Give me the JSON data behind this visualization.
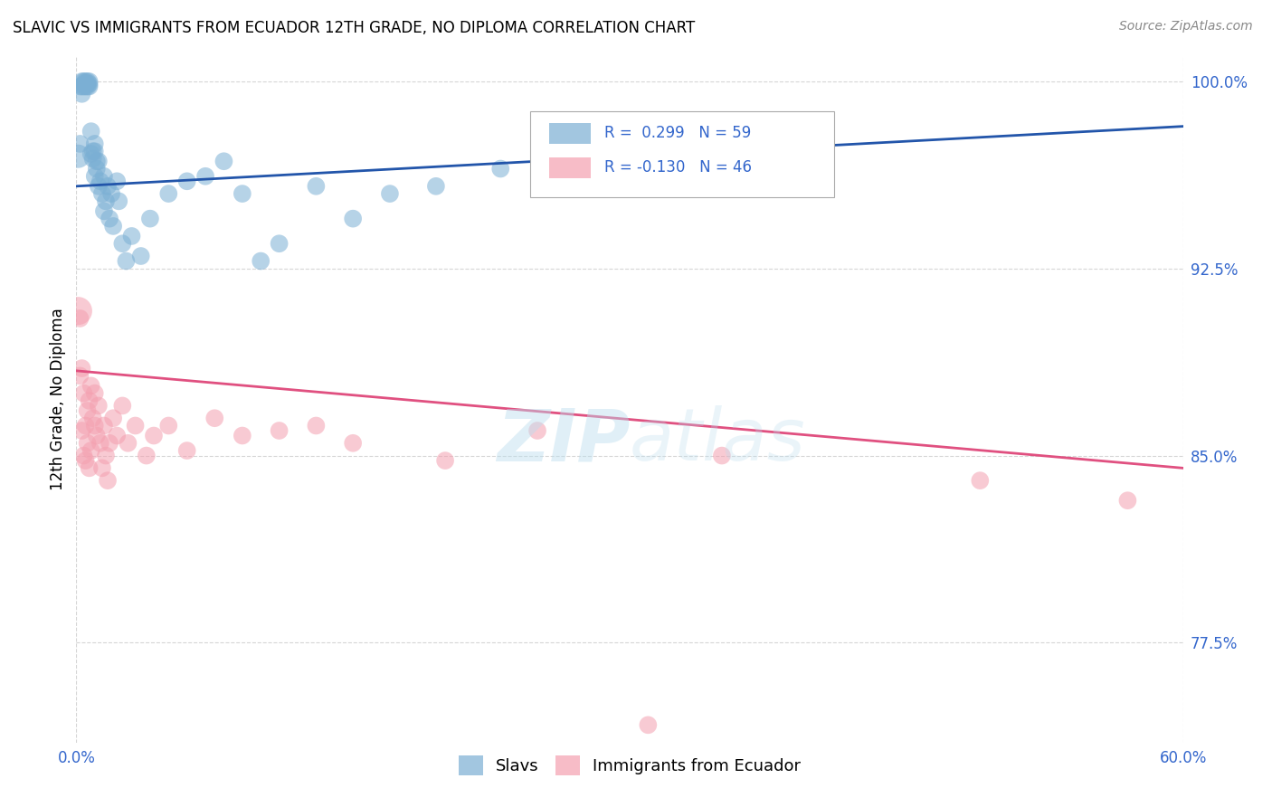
{
  "title": "SLAVIC VS IMMIGRANTS FROM ECUADOR 12TH GRADE, NO DIPLOMA CORRELATION CHART",
  "source": "Source: ZipAtlas.com",
  "ylabel_label": "12th Grade, No Diploma",
  "watermark_zip": "ZIP",
  "watermark_atlas": "atlas",
  "blue_color": "#7BAFD4",
  "pink_color": "#F4A0B0",
  "blue_line_color": "#2255AA",
  "pink_line_color": "#E05080",
  "xlim": [
    0.0,
    0.6
  ],
  "ylim": [
    0.735,
    1.01
  ],
  "yticks": [
    0.775,
    0.85,
    0.925,
    1.0
  ],
  "xticks": [
    0.0,
    0.6
  ],
  "blue_line_x0": 0.0,
  "blue_line_y0": 0.958,
  "blue_line_x1": 0.6,
  "blue_line_y1": 0.982,
  "pink_line_x0": 0.0,
  "pink_line_y0": 0.884,
  "pink_line_x1": 0.6,
  "pink_line_y1": 0.845,
  "slavs_x": [
    0.001,
    0.002,
    0.002,
    0.003,
    0.003,
    0.003,
    0.004,
    0.004,
    0.004,
    0.005,
    0.005,
    0.005,
    0.006,
    0.006,
    0.006,
    0.007,
    0.007,
    0.007,
    0.008,
    0.008,
    0.009,
    0.009,
    0.01,
    0.01,
    0.01,
    0.011,
    0.011,
    0.012,
    0.012,
    0.013,
    0.014,
    0.015,
    0.015,
    0.016,
    0.017,
    0.018,
    0.019,
    0.02,
    0.022,
    0.023,
    0.025,
    0.027,
    0.03,
    0.035,
    0.04,
    0.05,
    0.06,
    0.07,
    0.08,
    0.09,
    0.1,
    0.11,
    0.13,
    0.15,
    0.17,
    0.195,
    0.23,
    0.27,
    0.31
  ],
  "slavs_y": [
    0.97,
    0.975,
    0.998,
    0.995,
    0.998,
    1.0,
    0.998,
    0.999,
    1.0,
    0.998,
    0.999,
    1.0,
    0.998,
    0.999,
    1.0,
    0.998,
    0.999,
    1.0,
    0.971,
    0.98,
    0.969,
    0.972,
    0.962,
    0.972,
    0.975,
    0.965,
    0.968,
    0.958,
    0.968,
    0.96,
    0.955,
    0.948,
    0.962,
    0.952,
    0.958,
    0.945,
    0.955,
    0.942,
    0.96,
    0.952,
    0.935,
    0.928,
    0.938,
    0.93,
    0.945,
    0.955,
    0.96,
    0.962,
    0.968,
    0.955,
    0.928,
    0.935,
    0.958,
    0.945,
    0.955,
    0.958,
    0.965,
    0.97,
    0.975
  ],
  "slavs_sizes": [
    350,
    200,
    200,
    200,
    200,
    200,
    200,
    200,
    200,
    200,
    200,
    200,
    200,
    200,
    200,
    200,
    200,
    200,
    200,
    200,
    200,
    200,
    200,
    200,
    200,
    200,
    200,
    200,
    200,
    200,
    200,
    200,
    200,
    200,
    200,
    200,
    200,
    200,
    200,
    200,
    200,
    200,
    200,
    200,
    200,
    200,
    200,
    200,
    200,
    200,
    200,
    200,
    200,
    200,
    200,
    200,
    200,
    200,
    200
  ],
  "ecuador_x": [
    0.001,
    0.002,
    0.002,
    0.003,
    0.003,
    0.004,
    0.004,
    0.005,
    0.005,
    0.006,
    0.006,
    0.007,
    0.007,
    0.008,
    0.008,
    0.009,
    0.01,
    0.01,
    0.011,
    0.012,
    0.013,
    0.014,
    0.015,
    0.016,
    0.017,
    0.018,
    0.02,
    0.022,
    0.025,
    0.028,
    0.032,
    0.038,
    0.042,
    0.05,
    0.06,
    0.075,
    0.09,
    0.11,
    0.13,
    0.15,
    0.2,
    0.25,
    0.31,
    0.35,
    0.49,
    0.57
  ],
  "ecuador_y": [
    0.908,
    0.905,
    0.882,
    0.885,
    0.86,
    0.875,
    0.85,
    0.862,
    0.848,
    0.868,
    0.855,
    0.872,
    0.845,
    0.878,
    0.852,
    0.865,
    0.862,
    0.875,
    0.858,
    0.87,
    0.855,
    0.845,
    0.862,
    0.85,
    0.84,
    0.855,
    0.865,
    0.858,
    0.87,
    0.855,
    0.862,
    0.85,
    0.858,
    0.862,
    0.852,
    0.865,
    0.858,
    0.86,
    0.862,
    0.855,
    0.848,
    0.86,
    0.742,
    0.85,
    0.84,
    0.832
  ],
  "ecuador_sizes": [
    500,
    200,
    200,
    200,
    200,
    200,
    200,
    200,
    200,
    200,
    200,
    200,
    200,
    200,
    200,
    200,
    200,
    200,
    200,
    200,
    200,
    200,
    200,
    200,
    200,
    200,
    200,
    200,
    200,
    200,
    200,
    200,
    200,
    200,
    200,
    200,
    200,
    200,
    200,
    200,
    200,
    200,
    200,
    200,
    200,
    200
  ]
}
